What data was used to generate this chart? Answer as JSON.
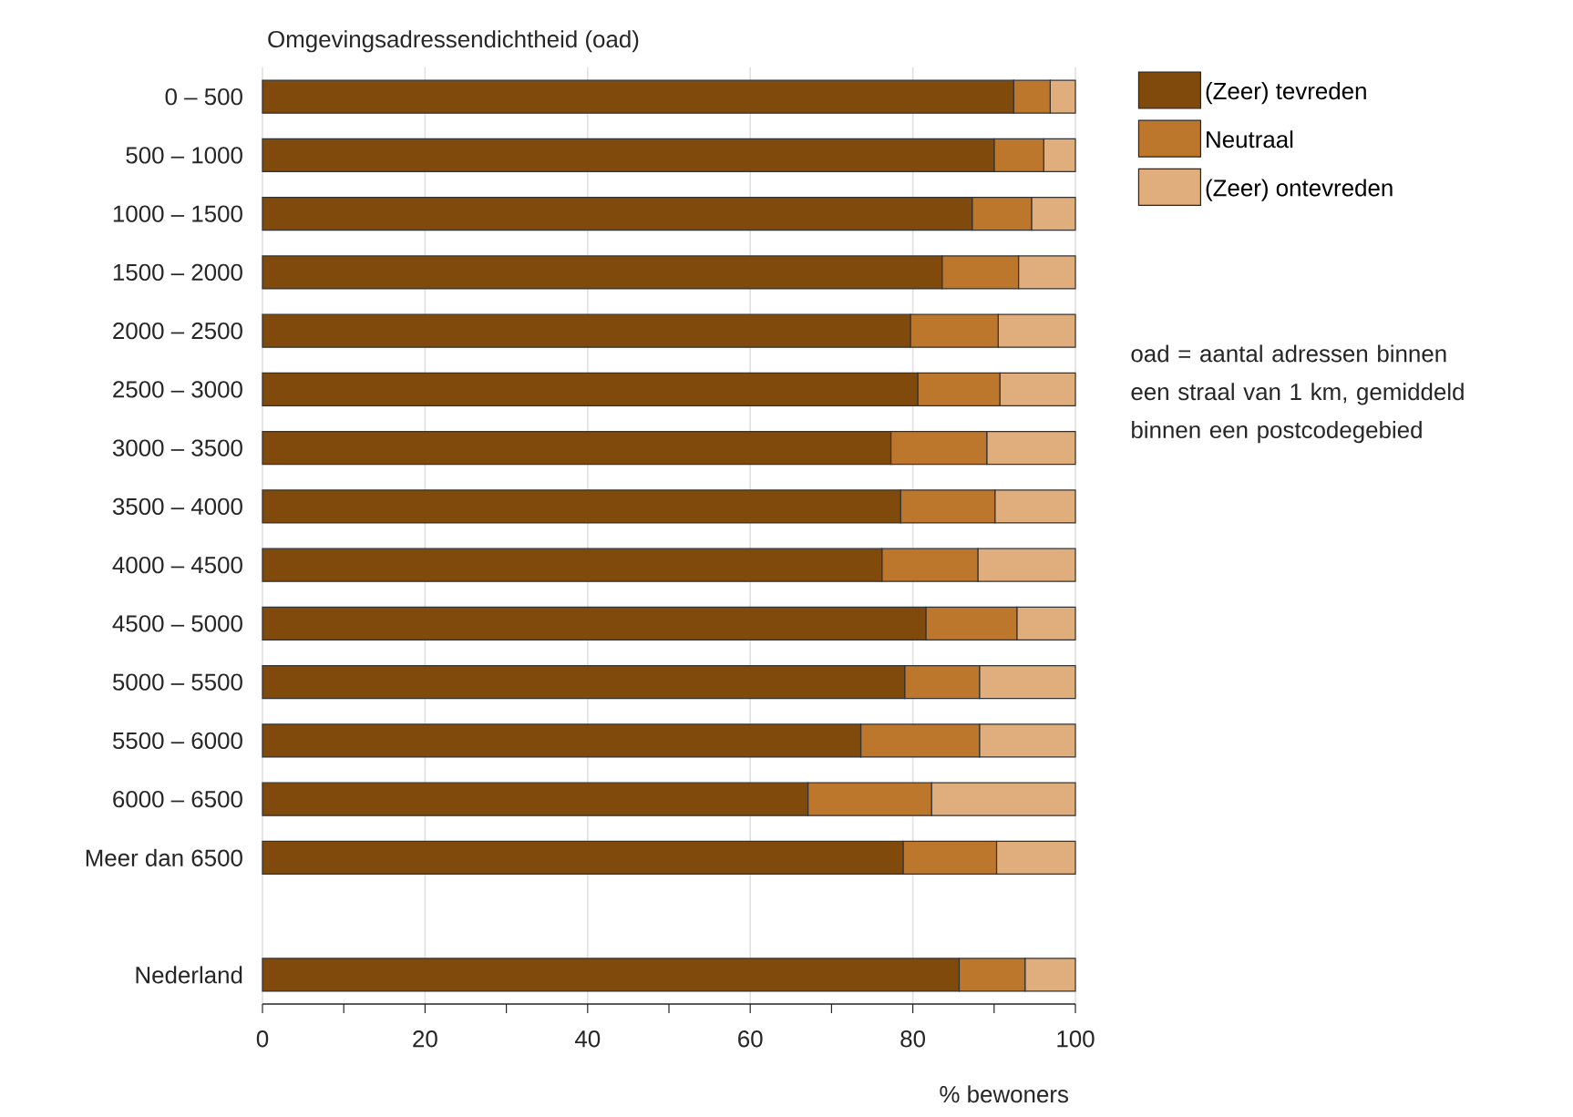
{
  "chart_data": {
    "type": "bar",
    "orientation": "horizontal",
    "stacked": true,
    "title": "Omgevingsadressendichtheid (oad)",
    "xlabel": "% bewoners",
    "categories": [
      "0 – 500",
      "500 – 1000",
      "1000 – 1500",
      "1500 – 2000",
      "2000 – 2500",
      "2500 – 3000",
      "3000 – 3500",
      "3500 – 4000",
      "4000 – 4500",
      "4500 – 5000",
      "5000 – 5500",
      "5500 – 6000",
      "6000 – 6500",
      "Meer dan 6500",
      null,
      "Nederland"
    ],
    "series": [
      {
        "name": "(Zeer) tevreden",
        "color": "#7f4a0c",
        "values": [
          92.4,
          90.0,
          87.3,
          83.6,
          79.7,
          80.6,
          77.3,
          78.5,
          76.2,
          81.6,
          79.0,
          73.6,
          67.1,
          78.8,
          null,
          85.7
        ]
      },
      {
        "name": "Neutraal",
        "color": "#bd772d",
        "values": [
          4.5,
          6.1,
          7.3,
          9.4,
          10.8,
          10.1,
          11.8,
          11.6,
          11.8,
          11.2,
          9.2,
          14.6,
          15.2,
          11.5,
          null,
          8.1
        ]
      },
      {
        "name": "(Zeer) ontevreden",
        "color": "#e0ae7c",
        "values": [
          3.1,
          3.9,
          5.4,
          7.0,
          9.5,
          9.3,
          10.9,
          9.9,
          12.0,
          7.2,
          11.8,
          11.8,
          17.7,
          9.7,
          null,
          6.2
        ]
      }
    ],
    "xlim": [
      0,
      100
    ],
    "xticks": [
      0,
      {
        "value": 10,
        "label": null
      },
      20,
      {
        "value": 30,
        "label": null
      },
      40,
      {
        "value": 50,
        "label": null
      },
      60,
      {
        "value": 70,
        "label": null
      },
      80,
      {
        "value": 90,
        "label": null
      },
      100
    ],
    "grid": "x",
    "legend": "top right",
    "annotations": [
      "oad = aantal adressen binnen een straal van 1 km, gemiddeld binnen een postcodegebied"
    ]
  }
}
